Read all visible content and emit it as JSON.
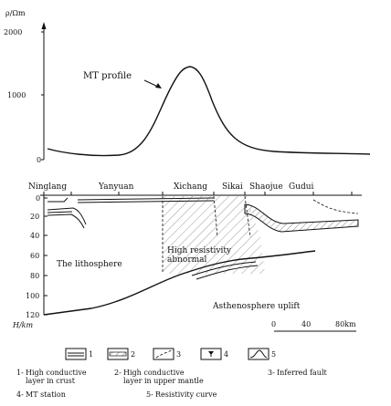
{
  "resistivity_panel": {
    "y_unit": "ρ/Ωm",
    "ticks": [
      "2000",
      "1000",
      "0"
    ],
    "curve_label": "MT profile"
  },
  "stations": [
    "Ninglang",
    "Yanyuan",
    "Xichang",
    "Sikai",
    "Shaojue",
    "Gudui"
  ],
  "section_panel": {
    "depth_ticks": [
      "0",
      "20",
      "40",
      "60",
      "80",
      "100",
      "120"
    ],
    "depth_unit": "H/km",
    "label_lithosphere": "The lithosphere",
    "label_high_res_1": "High resistivity",
    "label_high_res_2": "abnormal",
    "label_asthenosphere": "Asthenosphere uplift",
    "scale": [
      "0",
      "40",
      "80km"
    ]
  },
  "legend": {
    "numbers": [
      "1",
      "2",
      "3",
      "4",
      "5"
    ],
    "items": [
      {
        "num": "1-",
        "line1": "High conductive",
        "line2": "layer in crust"
      },
      {
        "num": "2-",
        "line1": "High conductive",
        "line2": "layer in upper mantle"
      },
      {
        "num": "3-",
        "line1": "Inferred fault",
        "line2": ""
      },
      {
        "num": "4-",
        "line1": "MT station",
        "line2": ""
      },
      {
        "num": "5-",
        "line1": "Resistivity curve",
        "line2": ""
      }
    ]
  }
}
